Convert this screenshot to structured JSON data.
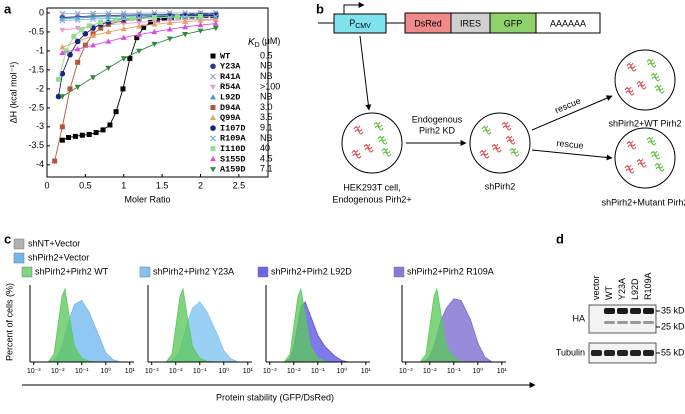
{
  "panel_labels": [
    "a",
    "b",
    "c",
    "d"
  ],
  "chart_data": [
    {
      "type": "scatter",
      "xlabel": "Moler Ratio",
      "ylabel": "ΔH (kcal mol⁻¹)",
      "xlim": [
        0,
        2.88
      ],
      "ylim": [
        -4.32,
        0.13
      ],
      "xticks": [
        0,
        0.5,
        1,
        1.5,
        2,
        2.5
      ],
      "yticks": [
        0,
        -0.5,
        -1,
        -1.5,
        -2,
        -2.5,
        -3,
        -3.5,
        -4
      ],
      "kd_header": {
        "symbol": "K",
        "subscript": "D",
        "unit": "(μM)"
      },
      "series": [
        {
          "name": "WT",
          "kd": "0.5",
          "color": "#000000",
          "marker": "square",
          "x": [
            0.2,
            0.28,
            0.37,
            0.46,
            0.55,
            0.64,
            0.73,
            0.82,
            0.9,
            0.99,
            1.08,
            1.17,
            1.26,
            1.35,
            1.44,
            1.53,
            1.62,
            1.71,
            1.8,
            1.89,
            1.98,
            2.07,
            2.16
          ],
          "values": [
            -3.35,
            -3.28,
            -3.25,
            -3.22,
            -3.2,
            -3.15,
            -3.08,
            -2.95,
            -2.6,
            -2.0,
            -1.2,
            -0.65,
            -0.38,
            -0.25,
            -0.18,
            -0.14,
            -0.12,
            -0.1,
            -0.09,
            -0.08,
            -0.08,
            -0.07,
            -0.07
          ]
        },
        {
          "name": "Y23A",
          "kd": "NB",
          "color": "#2b3a8c",
          "marker": "circle",
          "x": [
            0.2,
            0.4,
            0.6,
            0.8,
            1.0,
            1.2,
            1.4,
            1.6,
            1.8,
            2.0,
            2.2
          ],
          "values": [
            -0.12,
            -0.1,
            -0.08,
            -0.07,
            -0.06,
            -0.05,
            -0.05,
            -0.04,
            -0.04,
            -0.03,
            -0.03
          ]
        },
        {
          "name": "R41A",
          "kd": "NB",
          "color": "#9aa6c8",
          "marker": "x",
          "x": [
            0.2,
            0.4,
            0.6,
            0.8,
            1.0,
            1.2,
            1.4,
            1.6,
            1.8,
            2.0,
            2.2
          ],
          "values": [
            -0.02,
            -0.02,
            -0.01,
            -0.01,
            -0.01,
            -0.01,
            0,
            0,
            0,
            0,
            0
          ]
        },
        {
          "name": "R54A",
          "kd": ">100",
          "color": "#e89ad8",
          "marker": "tri-down",
          "x": [
            0.2,
            0.4,
            0.6,
            0.8,
            1.0,
            1.2,
            1.4,
            1.6,
            1.8,
            2.0,
            2.2
          ],
          "values": [
            -0.45,
            -0.4,
            -0.35,
            -0.31,
            -0.28,
            -0.25,
            -0.22,
            -0.2,
            -0.18,
            -0.17,
            -0.16
          ]
        },
        {
          "name": "L92D",
          "kd": "NB",
          "color": "#3f9fb0",
          "marker": "tri-up",
          "x": [
            0.2,
            0.4,
            0.6,
            0.8,
            1.0,
            1.2,
            1.4,
            1.6,
            1.8,
            2.0,
            2.2
          ],
          "values": [
            -0.15,
            -0.13,
            -0.11,
            -0.1,
            -0.09,
            -0.08,
            -0.07,
            -0.07,
            -0.06,
            -0.06,
            -0.05
          ]
        },
        {
          "name": "D94A",
          "kd": "3.0",
          "color": "#b5543a",
          "marker": "square",
          "x": [
            0.1,
            0.2,
            0.3,
            0.4,
            0.5,
            0.6,
            0.7,
            0.8,
            1.0,
            1.2,
            1.4,
            1.6,
            1.8,
            2.0,
            2.2
          ],
          "values": [
            -3.9,
            -3.0,
            -2.0,
            -1.3,
            -0.85,
            -0.55,
            -0.4,
            -0.3,
            -0.2,
            -0.15,
            -0.12,
            -0.1,
            -0.09,
            -0.08,
            -0.08
          ]
        },
        {
          "name": "Q99A",
          "kd": "3.5",
          "color": "#e8a060",
          "marker": "tri-up",
          "x": [
            0.2,
            0.4,
            0.6,
            0.8,
            1.0,
            1.2,
            1.4,
            1.6,
            1.8,
            2.0,
            2.2
          ],
          "values": [
            -0.9,
            -0.75,
            -0.6,
            -0.5,
            -0.42,
            -0.35,
            -0.3,
            -0.26,
            -0.23,
            -0.2,
            -0.18
          ]
        },
        {
          "name": "I107D",
          "kd": "9.1",
          "color": "#1a237e",
          "marker": "circle",
          "x": [
            0.15,
            0.2,
            0.3,
            0.4,
            0.5,
            0.6,
            0.7,
            0.8,
            0.9,
            1.0,
            1.2,
            1.4,
            1.6,
            1.8,
            2.0,
            2.2
          ],
          "values": [
            -2.2,
            -1.6,
            -1.1,
            -0.75,
            -0.55,
            -0.4,
            -0.3,
            -0.24,
            -0.19,
            -0.16,
            -0.12,
            -0.1,
            -0.09,
            -0.08,
            -0.07,
            -0.07
          ]
        },
        {
          "name": "R109A",
          "kd": "NB",
          "color": "#7fb2e0",
          "marker": "x",
          "x": [
            0.2,
            0.4,
            0.6,
            0.8,
            1.0,
            1.2,
            1.4,
            1.6,
            1.8,
            2.0,
            2.2
          ],
          "values": [
            -0.2,
            -0.18,
            -0.16,
            -0.15,
            -0.14,
            -0.13,
            -0.12,
            -0.12,
            -0.11,
            -0.11,
            -0.1
          ]
        },
        {
          "name": "I110D",
          "kd": "40",
          "color": "#8fe08f",
          "marker": "square",
          "x": [
            0.15,
            0.25,
            0.35,
            0.45,
            0.55,
            0.7,
            0.9,
            1.1,
            1.4,
            1.7,
            2.0
          ],
          "values": [
            -1.75,
            -1.0,
            -0.62,
            -0.45,
            -0.34,
            -0.25,
            -0.19,
            -0.15,
            -0.12,
            -0.1,
            -0.09
          ]
        },
        {
          "name": "S155D",
          "kd": "4.5",
          "color": "#d94fd9",
          "marker": "tri-up",
          "x": [
            0.2,
            0.4,
            0.6,
            0.8,
            1.0,
            1.2,
            1.4,
            1.6,
            1.8,
            2.0,
            2.2
          ],
          "values": [
            -1.05,
            -0.95,
            -0.85,
            -0.75,
            -0.65,
            -0.57,
            -0.5,
            -0.43,
            -0.37,
            -0.32,
            -0.28
          ]
        },
        {
          "name": "A159D",
          "kd": "7.1",
          "color": "#2e8b3a",
          "marker": "tri-down",
          "x": [
            0.2,
            0.4,
            0.6,
            0.8,
            1.0,
            1.2,
            1.4,
            1.6,
            1.8,
            2.0,
            2.2
          ],
          "values": [
            -2.2,
            -1.95,
            -1.7,
            -1.45,
            -1.2,
            -1.0,
            -0.82,
            -0.68,
            -0.56,
            -0.47,
            -0.4
          ]
        }
      ]
    },
    {
      "type": "area",
      "xscale": "log",
      "xlabel": "Protein stability (GFP/DsRed)",
      "ylabel": "Percent of cells (%)",
      "xlim": [
        0.0007,
        15
      ],
      "ylim": [
        0,
        100
      ],
      "xticks": [
        {
          "value": 0.001,
          "label": "10⁻³"
        },
        {
          "value": 0.01,
          "label": "10⁻²"
        },
        {
          "value": 0.1,
          "label": "10⁻¹"
        },
        {
          "value": 1,
          "label": "10⁰"
        },
        {
          "value": 10,
          "label": "10¹"
        }
      ],
      "legend": [
        {
          "name": "shNT+Vector",
          "color": "#b0b0b0"
        },
        {
          "name": "shPirh2+Vector",
          "color": "#6fb8ee"
        }
      ],
      "panels": [
        {
          "title": "shPirh2+Pirh2 WT",
          "color": "#7fd67f",
          "curves": [
            {
              "color": "#6fb8ee",
              "x": [
                0.004,
                0.007,
                0.01,
                0.015,
                0.02,
                0.03,
                0.05,
                0.1,
                0.2,
                0.5,
                1,
                2,
                4
              ],
              "values": [
                0,
                2,
                8,
                20,
                35,
                55,
                75,
                80,
                65,
                35,
                12,
                3,
                0
              ]
            },
            {
              "color": "#5cc85c",
              "x": [
                0.004,
                0.007,
                0.01,
                0.015,
                0.02,
                0.03,
                0.05,
                0.1,
                0.2,
                0.5,
                1,
                2,
                4
              ],
              "values": [
                0,
                10,
                45,
                85,
                95,
                60,
                20,
                5,
                1,
                0,
                0,
                0,
                0
              ]
            }
          ]
        },
        {
          "title": "shPirh2+Pirh2 Y23A",
          "color": "#7cc3f0",
          "curves": [
            {
              "color": "#7cc3f0",
              "x": [
                0.004,
                0.007,
                0.01,
                0.015,
                0.02,
                0.03,
                0.05,
                0.1,
                0.2,
                0.5,
                1,
                2,
                4
              ],
              "values": [
                0,
                2,
                6,
                15,
                30,
                50,
                70,
                78,
                65,
                38,
                15,
                4,
                0
              ]
            },
            {
              "color": "#5cc85c",
              "x": [
                0.004,
                0.007,
                0.01,
                0.015,
                0.02,
                0.03,
                0.05,
                0.1,
                0.2,
                0.5,
                1,
                2,
                4
              ],
              "values": [
                0,
                10,
                45,
                85,
                95,
                60,
                20,
                5,
                1,
                0,
                0,
                0,
                0
              ]
            }
          ]
        },
        {
          "title": "shPirh2+Pirh2 L92D",
          "color": "#6a66e8",
          "curves": [
            {
              "color": "#5a55e0",
              "x": [
                0.004,
                0.007,
                0.01,
                0.015,
                0.02,
                0.03,
                0.05,
                0.1,
                0.2,
                0.5,
                1,
                2,
                4
              ],
              "values": [
                0,
                4,
                20,
                50,
                72,
                78,
                60,
                35,
                20,
                8,
                2,
                0,
                0
              ]
            },
            {
              "color": "#5cc85c",
              "x": [
                0.004,
                0.007,
                0.01,
                0.015,
                0.02,
                0.03,
                0.05,
                0.1,
                0.2,
                0.5,
                1,
                2,
                4
              ],
              "values": [
                0,
                10,
                45,
                85,
                95,
                60,
                20,
                5,
                1,
                0,
                0,
                0,
                0
              ]
            }
          ]
        },
        {
          "title": "shPirh2+Pirh2 R109A",
          "color": "#8a7ad8",
          "curves": [
            {
              "color": "#7a6ad0",
              "x": [
                0.004,
                0.007,
                0.01,
                0.015,
                0.02,
                0.03,
                0.05,
                0.1,
                0.2,
                0.5,
                1,
                2,
                4
              ],
              "values": [
                0,
                2,
                8,
                20,
                35,
                55,
                70,
                82,
                80,
                55,
                25,
                6,
                0
              ]
            },
            {
              "color": "#5cc85c",
              "x": [
                0.004,
                0.007,
                0.01,
                0.015,
                0.02,
                0.03,
                0.05,
                0.1,
                0.2,
                0.5,
                1,
                2,
                4
              ],
              "values": [
                0,
                10,
                45,
                85,
                95,
                60,
                20,
                5,
                1,
                0,
                0,
                0,
                0
              ]
            }
          ]
        }
      ]
    }
  ],
  "diagram": {
    "promoter": {
      "letter": "P",
      "subscript": "CMV"
    },
    "construct": [
      "DsRed",
      "IRES",
      "GFP",
      "AAAAAA"
    ],
    "cells": [
      {
        "label": [
          "HEK293T cell,",
          "Endogenous Pirh2+"
        ]
      },
      {
        "label": [
          "shPirh2"
        ]
      },
      {
        "label": [
          "shPirh2+WT Pirh2"
        ]
      },
      {
        "label": [
          "shPirh2+Mutant Pirh2"
        ]
      }
    ],
    "arrows": [
      {
        "label": [
          "Endogenous",
          "Pirh2 KD"
        ]
      },
      {
        "label": [
          "rescue"
        ]
      },
      {
        "label": [
          "rescue"
        ]
      }
    ]
  },
  "blot": {
    "lanes": [
      "vector",
      "WT",
      "Y23A",
      "L92D",
      "R109A"
    ],
    "rows": [
      {
        "label": "HA",
        "markers": [
          "35 kD",
          "25 kD"
        ]
      },
      {
        "label": "Tubulin",
        "markers": [
          "55 kD"
        ]
      }
    ]
  }
}
